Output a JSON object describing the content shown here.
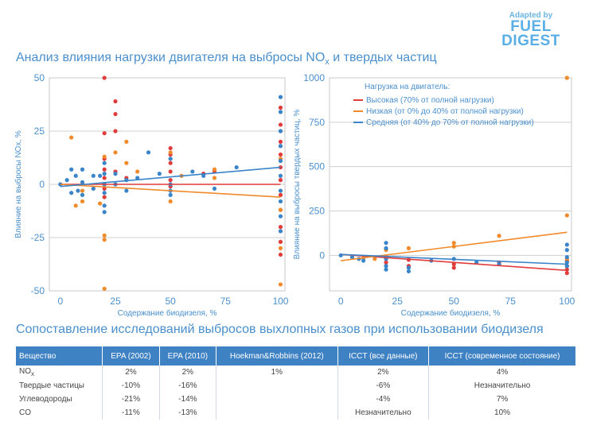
{
  "brand": {
    "small": "Adapted by",
    "large_1": "FUEL",
    "large_2": "DIGEST"
  },
  "title_main": "Анализ влияния нагрузки двигателя на выбросы NOx и твердых частиц",
  "title_table": "Сопоставление исследований выбросов выхлопных газов при использовании биодизеля",
  "colors": {
    "high": "#e03c3c",
    "low": "#f08a2a",
    "mid": "#3a84c9",
    "accent": "#4a8fcc"
  },
  "chart_data": [
    {
      "type": "scatter",
      "title": "",
      "xlabel": "Содержание биодизеля, %",
      "ylabel": "Влияние на выбросы NOx, %",
      "xlim": [
        -5,
        102
      ],
      "ylim": [
        -50,
        50
      ],
      "xticks": [
        "0",
        "25",
        "50",
        "75",
        "100"
      ],
      "yticks": [
        "50",
        "25",
        "0",
        "-25",
        "-50"
      ],
      "series": [
        {
          "name": "high",
          "points": [
            [
              20,
              50
            ],
            [
              20,
              24
            ],
            [
              20,
              12
            ],
            [
              20,
              7
            ],
            [
              20,
              3
            ],
            [
              20,
              -2
            ],
            [
              20,
              -6
            ],
            [
              25,
              39
            ],
            [
              25,
              33
            ],
            [
              25,
              25
            ],
            [
              25,
              6
            ],
            [
              30,
              3
            ],
            [
              50,
              17
            ],
            [
              50,
              14
            ],
            [
              50,
              10
            ],
            [
              50,
              6
            ],
            [
              50,
              2
            ],
            [
              50,
              -1
            ],
            [
              65,
              5
            ],
            [
              70,
              6
            ],
            [
              100,
              36
            ],
            [
              100,
              28
            ],
            [
              100,
              20
            ],
            [
              100,
              14
            ],
            [
              100,
              8
            ],
            [
              100,
              2
            ],
            [
              100,
              -5
            ],
            [
              100,
              -12
            ],
            [
              100,
              -20
            ],
            [
              100,
              -27
            ],
            [
              100,
              -33
            ]
          ],
          "trend": [
            [
              0,
              0
            ],
            [
              100,
              0
            ]
          ]
        },
        {
          "name": "low",
          "points": [
            [
              5,
              22
            ],
            [
              7,
              -10
            ],
            [
              10,
              -8
            ],
            [
              10,
              -3
            ],
            [
              15,
              -2
            ],
            [
              18,
              -9
            ],
            [
              20,
              13
            ],
            [
              20,
              -24
            ],
            [
              20,
              -26
            ],
            [
              20,
              -49
            ],
            [
              25,
              15
            ],
            [
              30,
              20
            ],
            [
              30,
              10
            ],
            [
              35,
              6
            ],
            [
              50,
              15
            ],
            [
              50,
              -8
            ],
            [
              55,
              4
            ],
            [
              70,
              7
            ],
            [
              70,
              3
            ],
            [
              100,
              25
            ],
            [
              100,
              12
            ],
            [
              100,
              -12
            ],
            [
              100,
              -22
            ],
            [
              100,
              -30
            ],
            [
              100,
              -47
            ]
          ],
          "trend": [
            [
              0,
              0
            ],
            [
              100,
              -6
            ]
          ]
        },
        {
          "name": "mid",
          "points": [
            [
              0,
              0
            ],
            [
              3,
              2
            ],
            [
              5,
              7
            ],
            [
              5,
              -4
            ],
            [
              7,
              4
            ],
            [
              8,
              -3
            ],
            [
              10,
              1
            ],
            [
              10,
              -5
            ],
            [
              10,
              7
            ],
            [
              15,
              4
            ],
            [
              15,
              -2
            ],
            [
              18,
              4
            ],
            [
              20,
              10
            ],
            [
              20,
              5
            ],
            [
              20,
              0
            ],
            [
              20,
              -4
            ],
            [
              20,
              -10
            ],
            [
              20,
              -13
            ],
            [
              25,
              5
            ],
            [
              25,
              0
            ],
            [
              30,
              2
            ],
            [
              30,
              -3
            ],
            [
              35,
              3
            ],
            [
              40,
              15
            ],
            [
              45,
              5
            ],
            [
              50,
              12
            ],
            [
              50,
              0
            ],
            [
              50,
              -3
            ],
            [
              50,
              -5
            ],
            [
              60,
              6
            ],
            [
              65,
              4
            ],
            [
              70,
              -2
            ],
            [
              80,
              8
            ],
            [
              100,
              41
            ],
            [
              100,
              34
            ],
            [
              100,
              25
            ],
            [
              100,
              18
            ],
            [
              100,
              11
            ],
            [
              100,
              4
            ],
            [
              100,
              -3
            ],
            [
              100,
              -8
            ],
            [
              100,
              -15
            ],
            [
              100,
              -22
            ]
          ],
          "trend": [
            [
              0,
              -1
            ],
            [
              100,
              8
            ]
          ]
        }
      ]
    },
    {
      "type": "scatter",
      "title": "",
      "xlabel": "Содержание биодизеля, %",
      "ylabel": "Влияние на выбросы твердых частиц, %",
      "xlim": [
        -5,
        102
      ],
      "ylim": [
        -200,
        1000
      ],
      "xticks": [
        "0",
        "25",
        "50",
        "75",
        "100"
      ],
      "yticks": [
        "1000",
        "750",
        "500",
        "250",
        "0"
      ],
      "legend": {
        "title": "Нагрузка на двигатель:",
        "entries": [
          "Высокая (70% от полной нагрузки)",
          "Низкая (от 0% до 40% от полной нагрузки)",
          "Средняя (от 40% до 70% от полной нагрузки)"
        ]
      },
      "series": [
        {
          "name": "high",
          "points": [
            [
              20,
              -10
            ],
            [
              20,
              -40
            ],
            [
              30,
              -25
            ],
            [
              30,
              -60
            ],
            [
              50,
              -50
            ],
            [
              50,
              -70
            ],
            [
              70,
              -40
            ],
            [
              100,
              -30
            ],
            [
              100,
              -60
            ],
            [
              100,
              -80
            ],
            [
              100,
              -100
            ]
          ],
          "trend": [
            [
              0,
              5
            ],
            [
              100,
              -85
            ]
          ]
        },
        {
          "name": "low",
          "points": [
            [
              10,
              -15
            ],
            [
              15,
              -20
            ],
            [
              20,
              30
            ],
            [
              30,
              40
            ],
            [
              50,
              70
            ],
            [
              50,
              50
            ],
            [
              70,
              110
            ],
            [
              100,
              1000
            ],
            [
              100,
              225
            ],
            [
              100,
              -20
            ]
          ],
          "trend": [
            [
              0,
              -30
            ],
            [
              100,
              130
            ]
          ]
        },
        {
          "name": "mid",
          "points": [
            [
              0,
              0
            ],
            [
              5,
              -10
            ],
            [
              8,
              -20
            ],
            [
              10,
              -30
            ],
            [
              20,
              70
            ],
            [
              20,
              40
            ],
            [
              20,
              -20
            ],
            [
              20,
              -60
            ],
            [
              20,
              -80
            ],
            [
              30,
              -70
            ],
            [
              30,
              -90
            ],
            [
              40,
              -30
            ],
            [
              50,
              -20
            ],
            [
              60,
              -40
            ],
            [
              70,
              -50
            ],
            [
              100,
              60
            ],
            [
              100,
              30
            ],
            [
              100,
              -10
            ],
            [
              100,
              -40
            ],
            [
              100,
              -60
            ]
          ],
          "trend": [
            [
              0,
              5
            ],
            [
              100,
              -50
            ]
          ]
        }
      ]
    },
    {
      "type": "table",
      "headers": [
        "Вещество",
        "EPA (2002)",
        "EPA (2010)",
        "Hoekman&Robbins (2012)",
        "ICCT (все данные)",
        "ICCT (современное состояние)"
      ],
      "rows": [
        [
          "NOx",
          "2%",
          "2%",
          "1%",
          "2%",
          "4%"
        ],
        [
          "Твердые частицы",
          "-10%",
          "-16%",
          "",
          "-6%",
          "Незначительно"
        ],
        [
          "Углеводороды",
          "-21%",
          "-14%",
          "",
          "-4%",
          "7%"
        ],
        [
          "CO",
          "-11%",
          "-13%",
          "",
          "Незначительно",
          "10%"
        ]
      ]
    }
  ]
}
